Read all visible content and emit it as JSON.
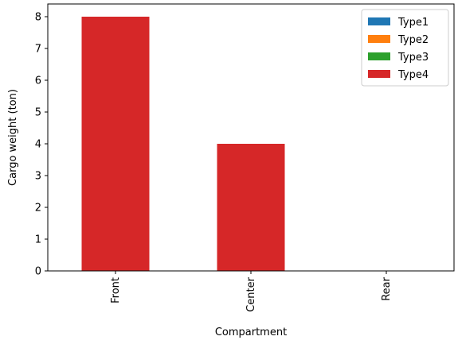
{
  "chart_data": {
    "type": "bar",
    "stacked": true,
    "categories": [
      "Front",
      "Center",
      "Rear"
    ],
    "series": [
      {
        "name": "Type1",
        "values": [
          0,
          0,
          0
        ],
        "color": "#1f77b4"
      },
      {
        "name": "Type2",
        "values": [
          0,
          0,
          0
        ],
        "color": "#ff7f0e"
      },
      {
        "name": "Type3",
        "values": [
          0,
          0,
          0
        ],
        "color": "#2ca02c"
      },
      {
        "name": "Type4",
        "values": [
          8,
          4,
          0
        ],
        "color": "#d62728"
      }
    ],
    "xlabel": "Compartment",
    "ylabel": "Cargo weight (ton)",
    "ylim": [
      0,
      8.4
    ],
    "yticks": [
      "0",
      "1",
      "2",
      "3",
      "4",
      "5",
      "6",
      "7",
      "8"
    ],
    "grid": false,
    "legend_position": "top-right"
  }
}
